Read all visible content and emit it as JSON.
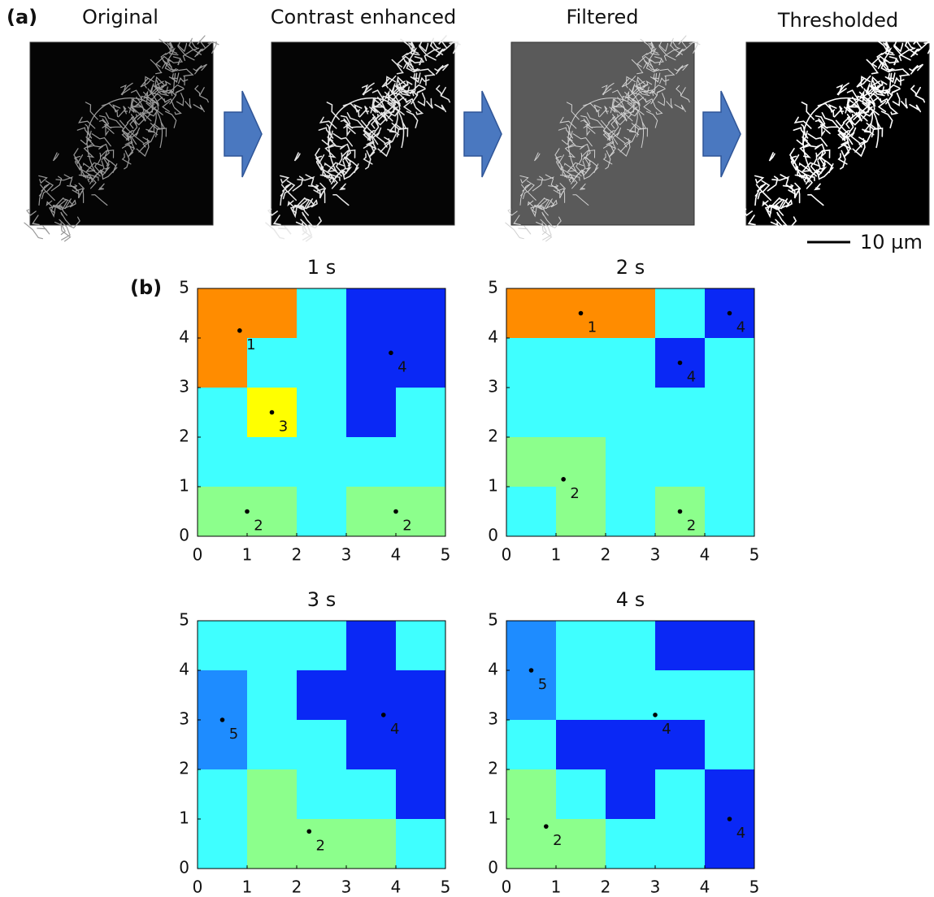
{
  "panel_a": {
    "label": "(a)",
    "titles": [
      "Original",
      "Contrast enhanced",
      "Filtered",
      "Thresholded"
    ],
    "scale_bar": "10 µm"
  },
  "panel_b_label": "(b)",
  "chart_data": [
    {
      "type": "grid",
      "title": "1 s",
      "xlim": [
        0,
        5
      ],
      "ylim": [
        0,
        5
      ],
      "xticks": [
        0,
        1,
        2,
        3,
        4,
        5
      ],
      "yticks": [
        0,
        1,
        2,
        3,
        4,
        5
      ],
      "colors": [
        "#3fffff",
        "#ff8c00",
        "#8cff8c",
        "#ffff00",
        "#0a28f5",
        "#1e8cff"
      ],
      "cells": [
        [
          1,
          1,
          0,
          4,
          4
        ],
        [
          1,
          0,
          0,
          4,
          4
        ],
        [
          0,
          3,
          0,
          4,
          0
        ],
        [
          0,
          0,
          0,
          0,
          0
        ],
        [
          2,
          2,
          0,
          2,
          2
        ]
      ],
      "points": [
        {
          "x": 0.85,
          "y": 4.15,
          "label": 1
        },
        {
          "x": 3.9,
          "y": 3.7,
          "label": 4
        },
        {
          "x": 1.5,
          "y": 2.5,
          "label": 3
        },
        {
          "x": 1.0,
          "y": 0.5,
          "label": 2
        },
        {
          "x": 4.0,
          "y": 0.5,
          "label": 2
        }
      ]
    },
    {
      "type": "grid",
      "title": "2 s",
      "xlim": [
        0,
        5
      ],
      "ylim": [
        0,
        5
      ],
      "xticks": [
        0,
        1,
        2,
        3,
        4,
        5
      ],
      "yticks": [
        0,
        1,
        2,
        3,
        4,
        5
      ],
      "colors": [
        "#3fffff",
        "#ff8c00",
        "#8cff8c",
        "#ffff00",
        "#0a28f5",
        "#1e8cff"
      ],
      "cells": [
        [
          1,
          1,
          1,
          0,
          4
        ],
        [
          0,
          0,
          0,
          4,
          0
        ],
        [
          0,
          0,
          0,
          0,
          0
        ],
        [
          2,
          2,
          0,
          0,
          0
        ],
        [
          0,
          2,
          0,
          2,
          0
        ]
      ],
      "points": [
        {
          "x": 1.5,
          "y": 4.5,
          "label": 1
        },
        {
          "x": 4.5,
          "y": 4.5,
          "label": 4
        },
        {
          "x": 3.5,
          "y": 3.5,
          "label": 4
        },
        {
          "x": 1.15,
          "y": 1.15,
          "label": 2
        },
        {
          "x": 3.5,
          "y": 0.5,
          "label": 2
        }
      ]
    },
    {
      "type": "grid",
      "title": "3 s",
      "xlim": [
        0,
        5
      ],
      "ylim": [
        0,
        5
      ],
      "xticks": [
        0,
        1,
        2,
        3,
        4,
        5
      ],
      "yticks": [
        0,
        1,
        2,
        3,
        4,
        5
      ],
      "colors": [
        "#3fffff",
        "#ff8c00",
        "#8cff8c",
        "#ffff00",
        "#0a28f5",
        "#1e8cff"
      ],
      "cells": [
        [
          0,
          0,
          0,
          4,
          0
        ],
        [
          5,
          0,
          4,
          4,
          4
        ],
        [
          5,
          0,
          0,
          4,
          4
        ],
        [
          0,
          2,
          0,
          0,
          4
        ],
        [
          0,
          2,
          2,
          2,
          0
        ]
      ],
      "points": [
        {
          "x": 0.5,
          "y": 3.0,
          "label": 5
        },
        {
          "x": 3.75,
          "y": 3.1,
          "label": 4
        },
        {
          "x": 2.25,
          "y": 0.75,
          "label": 2
        }
      ]
    },
    {
      "type": "grid",
      "title": "4 s",
      "xlim": [
        0,
        5
      ],
      "ylim": [
        0,
        5
      ],
      "xticks": [
        0,
        1,
        2,
        3,
        4,
        5
      ],
      "yticks": [
        0,
        1,
        2,
        3,
        4,
        5
      ],
      "colors": [
        "#3fffff",
        "#ff8c00",
        "#8cff8c",
        "#ffff00",
        "#0a28f5",
        "#1e8cff"
      ],
      "cells": [
        [
          5,
          0,
          0,
          4,
          4
        ],
        [
          5,
          0,
          0,
          0,
          0
        ],
        [
          0,
          4,
          4,
          4,
          0
        ],
        [
          2,
          0,
          4,
          0,
          4
        ],
        [
          2,
          2,
          0,
          0,
          4
        ]
      ],
      "points": [
        {
          "x": 0.5,
          "y": 4.0,
          "label": 5
        },
        {
          "x": 3.0,
          "y": 3.1,
          "label": 4
        },
        {
          "x": 0.8,
          "y": 0.85,
          "label": 2
        },
        {
          "x": 4.5,
          "y": 1.0,
          "label": 4
        }
      ]
    }
  ]
}
